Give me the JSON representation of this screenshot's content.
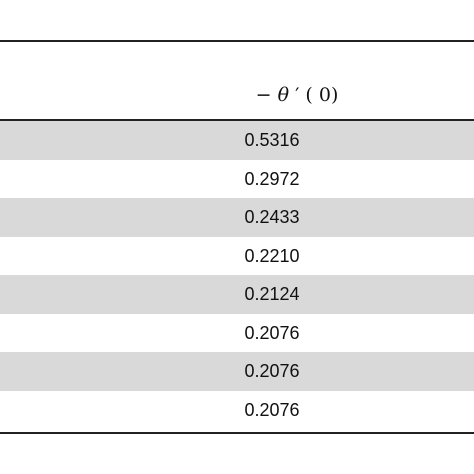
{
  "table": {
    "header": {
      "minus": "−",
      "theta": "θ",
      "suffix": " ′ ( 0)"
    },
    "rows": [
      "0.5316",
      "0.2972",
      "0.2433",
      "0.2210",
      "0.2124",
      "0.2076",
      "0.2076",
      "0.2076"
    ]
  }
}
